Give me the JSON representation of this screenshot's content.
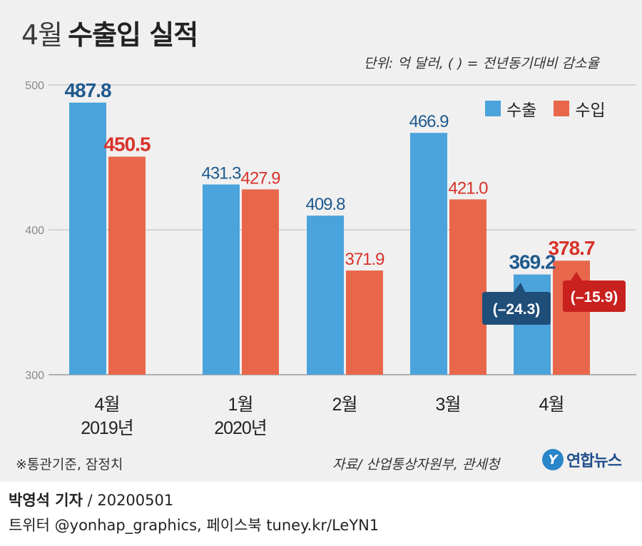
{
  "header": {
    "title_prefix": "4월",
    "title_main": "수출입 실적",
    "unit_note": "단위: 억 달러, ( ) = 전년동기대비 감소율"
  },
  "legend": {
    "export_label": "수출",
    "import_label": "수입"
  },
  "colors": {
    "export": "#4ba3db",
    "import": "#e8674a",
    "export_label": "#1f5a8e",
    "import_label": "#d8332a",
    "callout_export": "#1f4e79",
    "callout_import": "#c8211e"
  },
  "chart_data": {
    "type": "bar",
    "categories": [
      [
        "4월",
        "2019년"
      ],
      [
        "1월",
        "2020년"
      ],
      [
        "2월"
      ],
      [
        "3월"
      ],
      [
        "4월"
      ]
    ],
    "series": [
      {
        "name": "수출",
        "values": [
          487.8,
          431.3,
          409.8,
          466.9,
          369.2
        ]
      },
      {
        "name": "수입",
        "values": [
          450.5,
          427.9,
          371.9,
          421.0,
          378.7
        ]
      }
    ],
    "ylim": [
      300,
      500
    ],
    "yticks": [
      "300",
      "400",
      "500"
    ],
    "data_labels": {
      "export": [
        "487.8",
        "431.3",
        "409.8",
        "466.9",
        "369.2"
      ],
      "import": [
        "450.5",
        "427.9",
        "371.9",
        "421.0",
        "378.7"
      ]
    },
    "annotations": {
      "export_change": "(–24.3)",
      "import_change": "(–15.9)"
    },
    "grid": true
  },
  "footnote": "※통관기준, 잠정치",
  "source": "자료/ 산업통상자원부, 관세청",
  "logo_text": "연합뉴스",
  "byline": {
    "reporter": "박영석 기자",
    "date": " / 20200501",
    "social": "트위터 @yonhap_graphics, 페이스북 tuney.kr/LeYN1"
  }
}
